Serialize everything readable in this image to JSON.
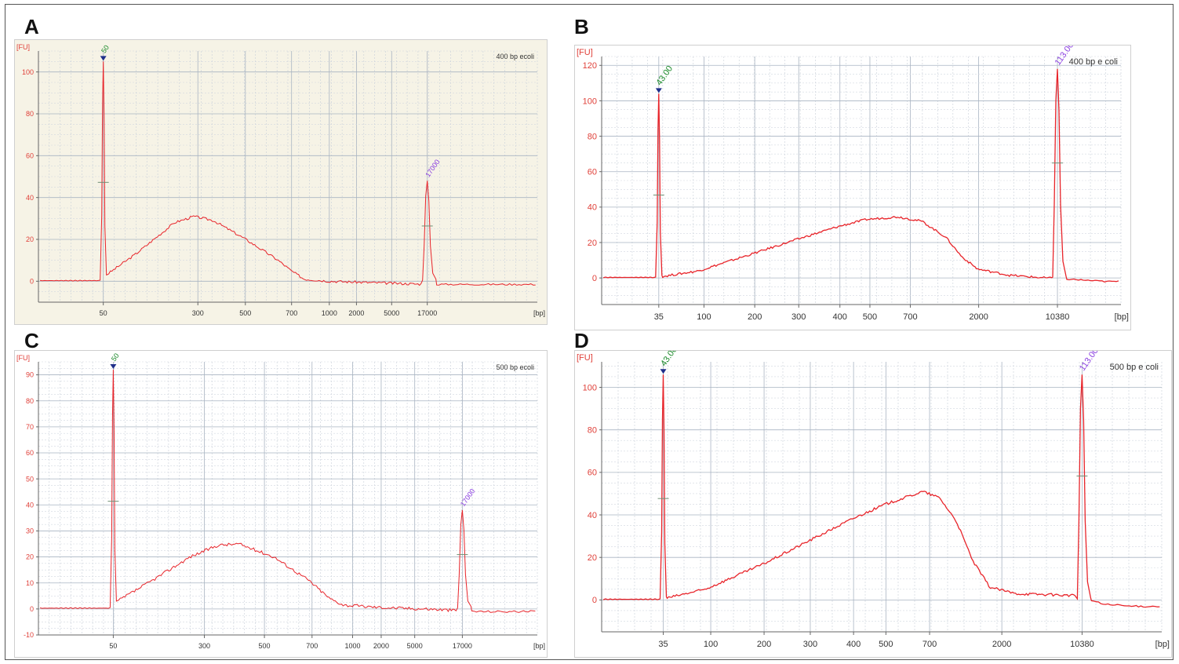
{
  "panels": [
    {
      "letter": "A",
      "chart_data": {
        "type": "line",
        "title": "400 bp ecoli",
        "ylabel": "[FU]",
        "xlabel": "[bp]",
        "ylim": [
          -10,
          110
        ],
        "yticks": [
          0,
          20,
          40,
          60,
          80,
          100
        ],
        "x_ticks": [
          "50",
          "300",
          "500",
          "700",
          "1000",
          "2000",
          "5000",
          "17000"
        ],
        "grid": true,
        "x_tick_pos": {
          "50": 0,
          "300": 22.3,
          "500": 33.5,
          "700": 44.4,
          "1000": 53.3,
          "2000": 59.7,
          "5000": 68.0,
          "17000": 76.4
        },
        "peaks": [
          {
            "label": "50",
            "x": "50",
            "height": 105
          },
          {
            "label": "17000",
            "x": "17000",
            "height": 48
          }
        ],
        "smear": {
          "peak_height": 31,
          "peak_x_label": "300-500",
          "curve": [
            [
              0,
              2
            ],
            [
              10,
              13
            ],
            [
              22,
              28
            ],
            [
              28,
              31
            ],
            [
              34,
              29
            ],
            [
              44,
              20
            ],
            [
              54,
              10
            ],
            [
              58,
              5
            ],
            [
              62,
              1
            ],
            [
              70,
              0
            ],
            [
              100,
              -1.5
            ]
          ]
        }
      }
    },
    {
      "letter": "B",
      "chart_data": {
        "type": "line",
        "title": "400 bp e coli",
        "ylabel": "[FU]",
        "xlabel": "[bp]",
        "ylim": [
          -15,
          125
        ],
        "yticks": [
          0,
          20,
          40,
          60,
          80,
          100,
          120
        ],
        "x_ticks": [
          "35",
          "100",
          "200",
          "300",
          "400",
          "500",
          "700",
          "2000",
          "10380"
        ],
        "grid": true,
        "x_tick_pos": {
          "35": 0,
          "100": 11.3,
          "200": 24.0,
          "300": 35.0,
          "400": 45.3,
          "500": 52.8,
          "700": 62.9,
          "2000": 80.0,
          "10380": 99.7
        },
        "peaks": [
          {
            "label": "43.00",
            "x": "35",
            "height": 104
          },
          {
            "label": "113.00",
            "x": "10380",
            "height": 118
          }
        ],
        "smear": {
          "peak_height": 34,
          "peak_x_label": "500-700",
          "curve": [
            [
              0,
              0.5
            ],
            [
              10,
              4
            ],
            [
              24,
              14
            ],
            [
              35,
              22
            ],
            [
              45,
              29
            ],
            [
              52,
              33
            ],
            [
              60,
              34.5
            ],
            [
              66,
              32
            ],
            [
              72,
              23
            ],
            [
              76,
              12
            ],
            [
              80,
              5
            ],
            [
              88,
              1.5
            ],
            [
              95,
              0.3
            ],
            [
              105,
              -1
            ],
            [
              112,
              -2
            ]
          ]
        }
      }
    },
    {
      "letter": "C",
      "chart_data": {
        "type": "line",
        "title": "500 bp ecoli",
        "ylabel": "[FU]",
        "xlabel": "[bp]",
        "ylim": [
          -10,
          95
        ],
        "yticks": [
          -10,
          0,
          10,
          20,
          30,
          40,
          50,
          60,
          70,
          80,
          90
        ],
        "x_ticks": [
          "50",
          "300",
          "500",
          "700",
          "1000",
          "2000",
          "5000",
          "17000"
        ],
        "grid": true,
        "x_tick_pos": {
          "50": 0,
          "300": 22.0,
          "500": 36.5,
          "700": 48.0,
          "1000": 57.8,
          "2000": 64.7,
          "5000": 72.8,
          "17000": 84.3
        },
        "peaks": [
          {
            "label": "50",
            "x": "50",
            "height": 92
          },
          {
            "label": "17000",
            "x": "17000",
            "height": 38
          }
        ],
        "smear": {
          "peak_height": 25,
          "peak_x_label": "500",
          "curve": [
            [
              0,
              2
            ],
            [
              10,
              10
            ],
            [
              22,
              20
            ],
            [
              30,
              24.5
            ],
            [
              36,
              25
            ],
            [
              46,
              20
            ],
            [
              56,
              11
            ],
            [
              62,
              4
            ],
            [
              66,
              1.5
            ],
            [
              75,
              0.7
            ],
            [
              82,
              0.3
            ],
            [
              90,
              0
            ],
            [
              105,
              -1
            ]
          ]
        }
      }
    },
    {
      "letter": "D",
      "chart_data": {
        "type": "line",
        "title": "500 bp e coli",
        "ylabel": "[FU]",
        "xlabel": "[bp]",
        "ylim": [
          -15,
          112
        ],
        "yticks": [
          0,
          20,
          40,
          60,
          80,
          100
        ],
        "x_ticks": [
          "35",
          "100",
          "200",
          "300",
          "400",
          "500",
          "700",
          "2000",
          "10380"
        ],
        "grid": true,
        "x_tick_pos": {
          "35": 0,
          "100": 11.3,
          "200": 24.0,
          "300": 35.0,
          "400": 45.3,
          "500": 53.0,
          "700": 63.4,
          "2000": 80.6,
          "10380": 99.7
        },
        "peaks": [
          {
            "label": "43.00",
            "x": "35",
            "height": 106
          },
          {
            "label": "113.00",
            "x": "10380",
            "height": 106
          }
        ],
        "smear": {
          "peak_height": 51,
          "peak_x_label": "700",
          "curve": [
            [
              0,
              0.5
            ],
            [
              10,
              5
            ],
            [
              24,
              17
            ],
            [
              35,
              28
            ],
            [
              45,
              38
            ],
            [
              53,
              45
            ],
            [
              62,
              51
            ],
            [
              66,
              48
            ],
            [
              70,
              37
            ],
            [
              74,
              18
            ],
            [
              78,
              6
            ],
            [
              84,
              3
            ],
            [
              92,
              2.5
            ],
            [
              99,
              2
            ],
            [
              105,
              -2
            ],
            [
              112,
              -3
            ]
          ]
        }
      }
    }
  ]
}
